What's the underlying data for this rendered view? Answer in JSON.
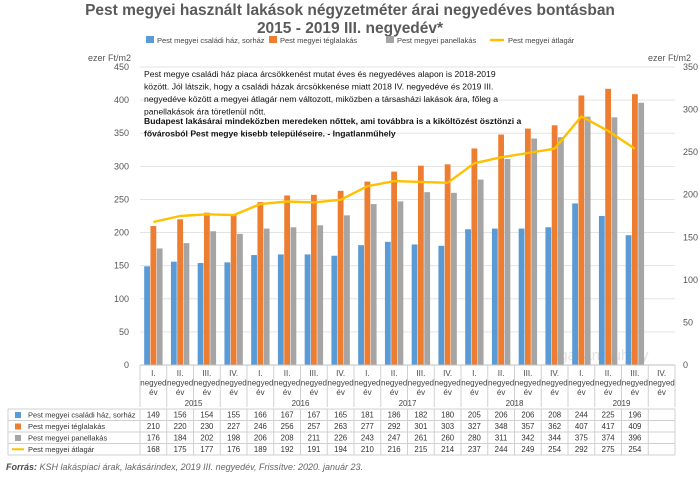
{
  "title_line1": "Pest megyei használt lakások négyzetméter árai negyedéves bontásban",
  "title_line2": "2015 - 2019 III. negyedév*",
  "source_label": "Forrás:",
  "source_text": " KSH lakáspiaci árak, lakásárindex, 2019 III. negyedév, Frissítve: 2020. január 23.",
  "watermark": "ingatlanmuhely",
  "chart_data": {
    "type": "bar",
    "y_left_label": "ezer Ft/m2",
    "y_right_label": "ezer Ft/m2",
    "y_left_range": [
      0,
      450
    ],
    "y_left_ticks": [
      0,
      50,
      100,
      150,
      200,
      250,
      300,
      350,
      400,
      450
    ],
    "y_right_range": [
      0,
      350
    ],
    "y_right_ticks": [
      0,
      50,
      100,
      150,
      200,
      250,
      300,
      350
    ],
    "legend_position": "top",
    "quarters": [
      "I. negyed év",
      "II. negyed év",
      "III. negyed év",
      "IV. negyed év",
      "I. negyed év",
      "II. negyed év",
      "III. negyed év",
      "IV. negyed év",
      "I. negyed év",
      "II. negyed év",
      "III. negyed év",
      "IV. negyed év",
      "I. negyed év",
      "II. negyed év",
      "III. negyed év",
      "IV. negyed év",
      "I. negyed év",
      "II. negyed év",
      "III. negyed év",
      "IV. negyed év"
    ],
    "years": [
      "2015",
      "2016",
      "2017",
      "2018",
      "2019"
    ],
    "series": [
      {
        "name": "Pest megyei családi ház, sorház",
        "color": "#5b9bd5",
        "axis": "left",
        "kind": "bar",
        "values": [
          149,
          156,
          154,
          155,
          166,
          167,
          167,
          165,
          181,
          186,
          182,
          180,
          205,
          206,
          206,
          208,
          244,
          225,
          196,
          null
        ]
      },
      {
        "name": "Pest megyei téglalakás",
        "color": "#ed7d31",
        "axis": "left",
        "kind": "bar",
        "values": [
          210,
          220,
          230,
          227,
          246,
          256,
          257,
          263,
          277,
          292,
          301,
          303,
          327,
          348,
          357,
          362,
          407,
          417,
          409,
          null
        ]
      },
      {
        "name": "Pest megyei panellakás",
        "color": "#a5a5a5",
        "axis": "left",
        "kind": "bar",
        "values": [
          176,
          184,
          202,
          198,
          206,
          208,
          211,
          226,
          243,
          247,
          261,
          260,
          280,
          311,
          342,
          344,
          375,
          374,
          396,
          null
        ]
      },
      {
        "name": "Pest megyei átlagár",
        "color": "#ffc000",
        "axis": "right",
        "kind": "line",
        "values": [
          168,
          175,
          177,
          176,
          189,
          192,
          191,
          194,
          210,
          216,
          215,
          214,
          237,
          244,
          249,
          254,
          292,
          275,
          254,
          null
        ]
      }
    ],
    "annotation_1": "Pest megye családi ház piaca árcsökkenést mutat éves és negyedéves alapon is 2018-2019 között. Jól látszik, hogy a családi házak árcsökkenése miatt 2018 IV. negyedéve és 2019 III. negyedéve között a megyei átlagár nem változott, miközben a társasházi lakások ára, főleg a panellakások ára töretlenül nőtt.",
    "annotation_2": "Budapest lakásárai mindeközben meredeken nőttek, ami továbbra is a kiköltözést ösztönzi a fővárosból Pest megye kisebb településeire. - Ingatlanműhely"
  }
}
